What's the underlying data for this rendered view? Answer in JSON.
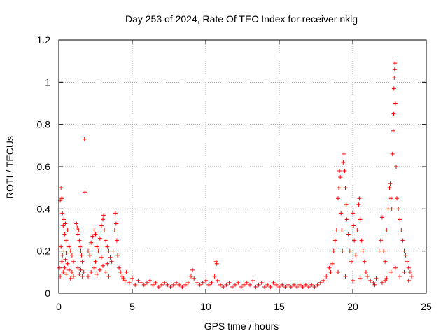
{
  "chart_data": {
    "type": "scatter",
    "title": "Day 253 of 2024, Rate Of TEC Index for receiver nklg",
    "xlabel": "GPS time / hours",
    "ylabel": "ROTI / TECUs",
    "xlim": [
      0,
      25
    ],
    "ylim": [
      0,
      1.2
    ],
    "xticks": [
      0,
      5,
      10,
      15,
      20,
      25
    ],
    "xtick_labels": [
      "0",
      "5",
      "10",
      "15",
      "20",
      "25"
    ],
    "yticks": [
      0,
      0.2,
      0.4,
      0.6,
      0.8,
      1,
      1.2
    ],
    "ytick_labels": [
      "0",
      "0.2",
      "0.4",
      "0.6",
      "0.8",
      "1",
      "1.2"
    ],
    "grid": true,
    "marker": "+",
    "color": "#ff0000",
    "series": [
      {
        "points": [
          [
            0.05,
            0.12
          ],
          [
            0.1,
            0.44
          ],
          [
            0.15,
            0.5
          ],
          [
            0.2,
            0.45
          ],
          [
            0.25,
            0.38
          ],
          [
            0.3,
            0.32
          ],
          [
            0.35,
            0.35
          ],
          [
            0.4,
            0.28
          ],
          [
            0.45,
            0.33
          ],
          [
            0.5,
            0.25
          ],
          [
            0.6,
            0.3
          ],
          [
            0.7,
            0.22
          ],
          [
            0.8,
            0.2
          ],
          [
            0.9,
            0.18
          ],
          [
            1.0,
            0.15
          ],
          [
            0.1,
            0.08
          ],
          [
            0.2,
            0.15
          ],
          [
            0.3,
            0.1
          ],
          [
            0.4,
            0.12
          ],
          [
            0.5,
            0.09
          ],
          [
            0.6,
            0.14
          ],
          [
            0.7,
            0.11
          ],
          [
            0.8,
            0.07
          ],
          [
            0.9,
            0.1
          ],
          [
            1.0,
            0.08
          ],
          [
            0.15,
            0.22
          ],
          [
            0.25,
            0.18
          ],
          [
            0.35,
            0.2
          ],
          [
            0.45,
            0.16
          ],
          [
            0.55,
            0.19
          ],
          [
            1.2,
            0.33
          ],
          [
            1.25,
            0.31
          ],
          [
            1.3,
            0.28
          ],
          [
            1.35,
            0.3
          ],
          [
            1.4,
            0.25
          ],
          [
            1.45,
            0.22
          ],
          [
            1.5,
            0.2
          ],
          [
            1.55,
            0.18
          ],
          [
            1.6,
            0.15
          ],
          [
            1.3,
            0.12
          ],
          [
            1.4,
            0.09
          ],
          [
            1.5,
            0.11
          ],
          [
            1.6,
            0.08
          ],
          [
            1.7,
            0.1
          ],
          [
            1.75,
            0.73
          ],
          [
            1.78,
            0.48
          ],
          [
            2.0,
            0.2
          ],
          [
            2.1,
            0.18
          ],
          [
            2.2,
            0.24
          ],
          [
            2.3,
            0.27
          ],
          [
            2.4,
            0.3
          ],
          [
            2.5,
            0.28
          ],
          [
            2.6,
            0.22
          ],
          [
            2.7,
            0.2
          ],
          [
            2.8,
            0.26
          ],
          [
            2.9,
            0.32
          ],
          [
            3.0,
            0.35
          ],
          [
            3.05,
            0.37
          ],
          [
            3.1,
            0.3
          ],
          [
            3.2,
            0.25
          ],
          [
            3.3,
            0.22
          ],
          [
            2.0,
            0.08
          ],
          [
            2.2,
            0.1
          ],
          [
            2.4,
            0.12
          ],
          [
            2.6,
            0.09
          ],
          [
            2.8,
            0.11
          ],
          [
            3.0,
            0.13
          ],
          [
            3.2,
            0.1
          ],
          [
            3.4,
            0.08
          ],
          [
            2.5,
            0.15
          ],
          [
            2.9,
            0.17
          ],
          [
            3.3,
            0.14
          ],
          [
            3.4,
            0.2
          ],
          [
            3.5,
            0.17
          ],
          [
            3.6,
            0.15
          ],
          [
            3.7,
            0.2
          ],
          [
            3.8,
            0.3
          ],
          [
            3.85,
            0.38
          ],
          [
            3.9,
            0.33
          ],
          [
            3.95,
            0.25
          ],
          [
            4.0,
            0.18
          ],
          [
            4.1,
            0.12
          ],
          [
            4.2,
            0.1
          ],
          [
            4.3,
            0.08
          ],
          [
            4.4,
            0.07
          ],
          [
            4.5,
            0.06
          ],
          [
            4.6,
            0.1
          ],
          [
            4.8,
            0.05
          ],
          [
            5.0,
            0.07
          ],
          [
            5.2,
            0.04
          ],
          [
            5.4,
            0.06
          ],
          [
            5.6,
            0.05
          ],
          [
            5.8,
            0.04
          ],
          [
            6.0,
            0.05
          ],
          [
            6.2,
            0.06
          ],
          [
            6.4,
            0.04
          ],
          [
            6.6,
            0.05
          ],
          [
            6.8,
            0.03
          ],
          [
            7.0,
            0.04
          ],
          [
            7.2,
            0.05
          ],
          [
            7.4,
            0.04
          ],
          [
            7.6,
            0.03
          ],
          [
            7.8,
            0.04
          ],
          [
            8.0,
            0.05
          ],
          [
            8.2,
            0.04
          ],
          [
            8.4,
            0.03
          ],
          [
            8.6,
            0.04
          ],
          [
            8.8,
            0.05
          ],
          [
            9.0,
            0.08
          ],
          [
            9.1,
            0.11
          ],
          [
            9.2,
            0.07
          ],
          [
            9.4,
            0.05
          ],
          [
            9.6,
            0.04
          ],
          [
            9.8,
            0.05
          ],
          [
            10.0,
            0.06
          ],
          [
            10.2,
            0.04
          ],
          [
            10.4,
            0.05
          ],
          [
            10.6,
            0.08
          ],
          [
            10.7,
            0.15
          ],
          [
            10.75,
            0.14
          ],
          [
            10.8,
            0.06
          ],
          [
            11.0,
            0.04
          ],
          [
            11.2,
            0.03
          ],
          [
            11.4,
            0.04
          ],
          [
            11.6,
            0.05
          ],
          [
            11.8,
            0.03
          ],
          [
            12.0,
            0.04
          ],
          [
            12.2,
            0.05
          ],
          [
            12.4,
            0.03
          ],
          [
            12.6,
            0.04
          ],
          [
            12.8,
            0.05
          ],
          [
            13.0,
            0.04
          ],
          [
            13.2,
            0.06
          ],
          [
            13.4,
            0.03
          ],
          [
            13.6,
            0.04
          ],
          [
            13.8,
            0.05
          ],
          [
            14.0,
            0.03
          ],
          [
            14.2,
            0.04
          ],
          [
            14.4,
            0.03
          ],
          [
            14.6,
            0.05
          ],
          [
            14.8,
            0.04
          ],
          [
            15.0,
            0.03
          ],
          [
            15.2,
            0.04
          ],
          [
            15.4,
            0.03
          ],
          [
            15.6,
            0.04
          ],
          [
            15.8,
            0.03
          ],
          [
            16.0,
            0.04
          ],
          [
            16.2,
            0.03
          ],
          [
            16.4,
            0.04
          ],
          [
            16.6,
            0.03
          ],
          [
            16.8,
            0.04
          ],
          [
            17.0,
            0.03
          ],
          [
            17.2,
            0.04
          ],
          [
            17.4,
            0.03
          ],
          [
            17.6,
            0.04
          ],
          [
            17.8,
            0.05
          ],
          [
            18.0,
            0.06
          ],
          [
            18.2,
            0.08
          ],
          [
            18.4,
            0.12
          ],
          [
            18.5,
            0.1
          ],
          [
            18.6,
            0.14
          ],
          [
            18.7,
            0.2
          ],
          [
            18.8,
            0.25
          ],
          [
            18.9,
            0.3
          ],
          [
            19.0,
            0.45
          ],
          [
            19.05,
            0.5
          ],
          [
            19.1,
            0.58
          ],
          [
            19.15,
            0.55
          ],
          [
            19.2,
            0.38
          ],
          [
            19.25,
            0.3
          ],
          [
            19.3,
            0.2
          ],
          [
            19.35,
            0.62
          ],
          [
            19.4,
            0.66
          ],
          [
            19.45,
            0.58
          ],
          [
            19.5,
            0.5
          ],
          [
            19.55,
            0.42
          ],
          [
            19.6,
            0.35
          ],
          [
            19.7,
            0.28
          ],
          [
            19.8,
            0.2
          ],
          [
            19.9,
            0.15
          ],
          [
            20.0,
            0.38
          ],
          [
            20.05,
            0.32
          ],
          [
            20.1,
            0.25
          ],
          [
            20.2,
            0.18
          ],
          [
            20.3,
            0.3
          ],
          [
            20.4,
            0.42
          ],
          [
            20.45,
            0.45
          ],
          [
            20.5,
            0.35
          ],
          [
            20.6,
            0.25
          ],
          [
            20.7,
            0.2
          ],
          [
            20.8,
            0.15
          ],
          [
            20.9,
            0.1
          ],
          [
            19.0,
            0.1
          ],
          [
            19.5,
            0.08
          ],
          [
            20.0,
            0.06
          ],
          [
            20.5,
            0.07
          ],
          [
            21.0,
            0.08
          ],
          [
            21.2,
            0.06
          ],
          [
            21.4,
            0.05
          ],
          [
            21.6,
            0.07
          ],
          [
            21.8,
            0.2
          ],
          [
            21.9,
            0.25
          ],
          [
            22.0,
            0.36
          ],
          [
            22.1,
            0.2
          ],
          [
            22.2,
            0.15
          ],
          [
            22.3,
            0.3
          ],
          [
            22.4,
            0.4
          ],
          [
            22.5,
            0.5
          ],
          [
            22.55,
            0.52
          ],
          [
            22.6,
            0.45
          ],
          [
            22.65,
            0.4
          ],
          [
            22.7,
            0.66
          ],
          [
            22.75,
            0.77
          ],
          [
            22.78,
            0.85
          ],
          [
            22.8,
            0.97
          ],
          [
            22.82,
            1.02
          ],
          [
            22.85,
            1.06
          ],
          [
            22.87,
            1.09
          ],
          [
            22.9,
            0.9
          ],
          [
            22.95,
            0.6
          ],
          [
            23.0,
            0.45
          ],
          [
            23.1,
            0.4
          ],
          [
            23.2,
            0.35
          ],
          [
            23.3,
            0.3
          ],
          [
            23.4,
            0.25
          ],
          [
            23.5,
            0.2
          ],
          [
            23.6,
            0.18
          ],
          [
            23.7,
            0.15
          ],
          [
            23.8,
            0.12
          ],
          [
            23.9,
            0.1
          ],
          [
            24.0,
            0.08
          ],
          [
            22.0,
            0.05
          ],
          [
            22.3,
            0.07
          ],
          [
            22.6,
            0.1
          ],
          [
            22.9,
            0.12
          ],
          [
            23.2,
            0.08
          ],
          [
            23.5,
            0.1
          ],
          [
            23.8,
            0.06
          ],
          [
            21.5,
            0.04
          ],
          [
            22.2,
            0.06
          ]
        ]
      }
    ]
  }
}
